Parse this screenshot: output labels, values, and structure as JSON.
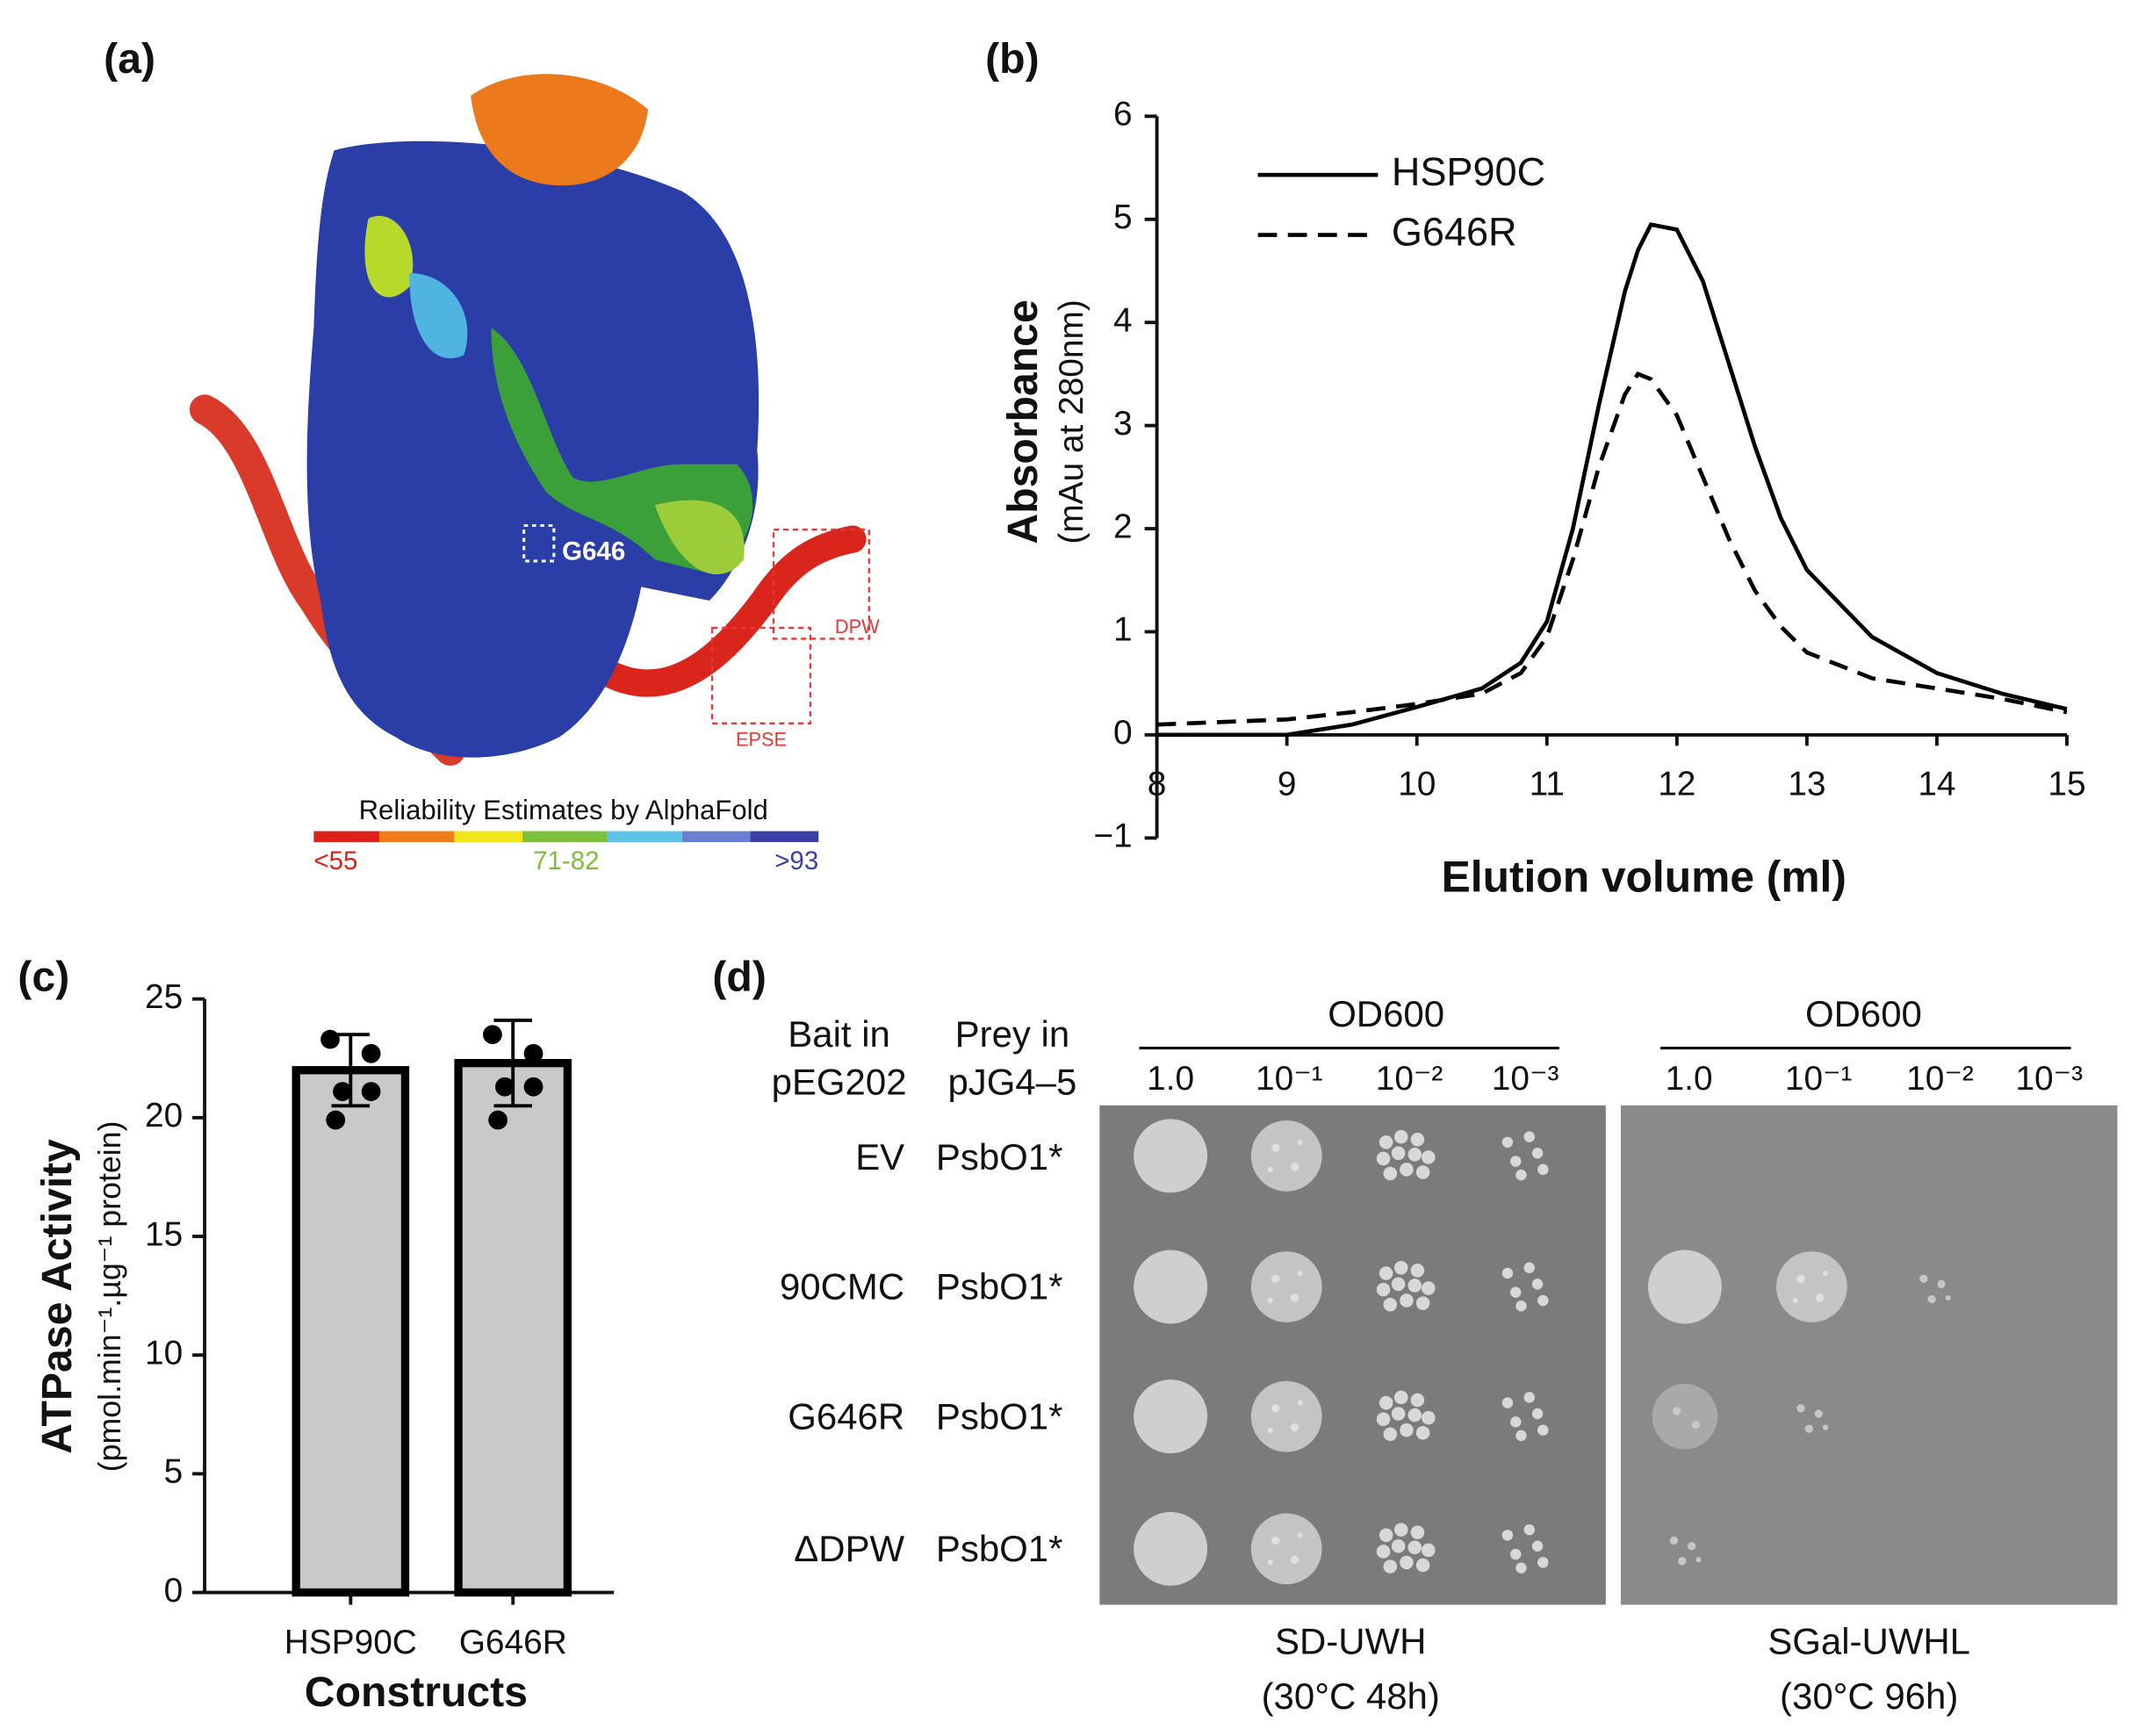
{
  "panel_a": {
    "label": "(a)",
    "site": "G646",
    "motif_1": "DPW",
    "motif_2": "EPSE",
    "scale_title": "Reliability Estimates by AlphaFold",
    "scale_low": "<55",
    "scale_mid": "71-82",
    "scale_high": ">93"
  },
  "chart_data": [
    {
      "type": "line",
      "panel": "(b)",
      "y_title": "Absorbance",
      "y_subtitle": "(mAu at 280nm)",
      "x_title": "Elution volume (ml)",
      "x": [
        8,
        9,
        9.5,
        10,
        10.5,
        10.8,
        11,
        11.2,
        11.4,
        11.6,
        11.7,
        11.8,
        12,
        12.2,
        12.4,
        12.6,
        12.8,
        13,
        13.5,
        14,
        14.5,
        15
      ],
      "series": [
        {
          "name": "HSP90C",
          "color": "#000000",
          "line_style": "solid",
          "values": [
            0,
            0,
            0.1,
            0.27,
            0.45,
            0.7,
            1.1,
            2.0,
            3.2,
            4.3,
            4.7,
            4.95,
            4.9,
            4.4,
            3.6,
            2.8,
            2.1,
            1.6,
            0.95,
            0.6,
            0.4,
            0.25
          ]
        },
        {
          "name": "G646R",
          "color": "#000000",
          "line_style": "dashed",
          "values": [
            0.1,
            0.15,
            0.22,
            0.3,
            0.4,
            0.6,
            0.95,
            1.7,
            2.6,
            3.3,
            3.5,
            3.45,
            3.1,
            2.5,
            1.9,
            1.4,
            1.05,
            0.8,
            0.55,
            0.45,
            0.35,
            0.22
          ]
        }
      ],
      "xlim": [
        8,
        15
      ],
      "ylim": [
        -1,
        6
      ],
      "xticks": [
        8,
        9,
        10,
        11,
        12,
        13,
        14,
        15
      ],
      "yticks": [
        {
          "value": -1,
          "label": "−1"
        },
        0,
        1,
        2,
        3,
        4,
        5,
        6
      ]
    },
    {
      "type": "bar",
      "panel": "(c)",
      "y_title": "ATPase Activity",
      "y_subtitle": "(pmol.min⁻¹.µg⁻¹ protein)",
      "x_title": "Constructs",
      "categories": [
        "HSP90C",
        "G646R"
      ],
      "values": [
        22.0,
        22.3
      ],
      "errors": [
        1.5,
        1.8
      ],
      "points": [
        [
          23.3,
          22.7,
          21.1,
          21.1,
          19.9
        ],
        [
          23.5,
          22.7,
          21.3,
          21.3,
          19.9
        ]
      ],
      "color": "#c8c9cb",
      "ylim": [
        0,
        25
      ],
      "yticks": [
        0,
        5,
        10,
        15,
        20,
        25
      ]
    }
  ],
  "panel_d": {
    "label": "(d)",
    "bait_header": [
      "Bait in",
      "pEG202"
    ],
    "prey_header": [
      "Prey in",
      "pJG4–5"
    ],
    "rows": [
      {
        "bait": "EV",
        "prey": "PsbO1*"
      },
      {
        "bait": "90CMC",
        "prey": "PsbO1*"
      },
      {
        "bait": "G646R",
        "prey": "PsbO1*"
      },
      {
        "bait": "ΔDPW",
        "prey": "PsbO1*"
      }
    ],
    "plates": [
      {
        "od_label": "OD600",
        "dilutions": [
          "1.0",
          "10⁻¹",
          "10⁻²",
          "10⁻³"
        ],
        "medium": "SD-UWH",
        "condition": "(30°C 48h)"
      },
      {
        "od_label": "OD600",
        "dilutions": [
          "1.0",
          "10⁻¹",
          "10⁻²",
          "10⁻³"
        ],
        "medium": "SGal-UWHL",
        "condition": "(30°C 96h)"
      }
    ]
  }
}
